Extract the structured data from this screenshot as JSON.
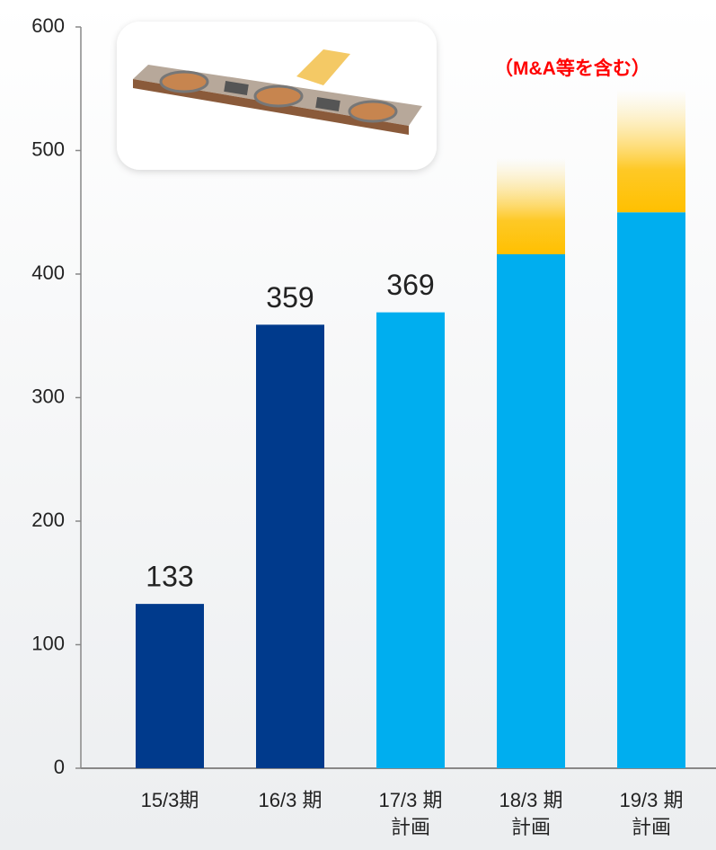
{
  "chart_data": {
    "type": "stacked_bar",
    "annotation": "（M&A等を含む）",
    "categories": [
      "15/3期",
      "16/3 期",
      "17/3 期\n計画",
      "18/3 期\n計画",
      "19/3 期\n計画"
    ],
    "series": [
      {
        "color": "#003a8c",
        "values": [
          133,
          359,
          null,
          null,
          null
        ],
        "value_labels": [
          "133",
          "359",
          null,
          null,
          null
        ]
      },
      {
        "color": "#00aeef",
        "values": [
          null,
          null,
          369,
          416,
          450
        ],
        "value_labels": [
          null,
          null,
          "369",
          null,
          null
        ]
      },
      {
        "color": "#ffc000",
        "fade": true,
        "values": [
          null,
          null,
          null,
          78,
          99
        ]
      }
    ],
    "ylim": [
      0,
      600
    ],
    "yticks": [
      0,
      100,
      200,
      300,
      400,
      500,
      600
    ],
    "grid": false
  }
}
